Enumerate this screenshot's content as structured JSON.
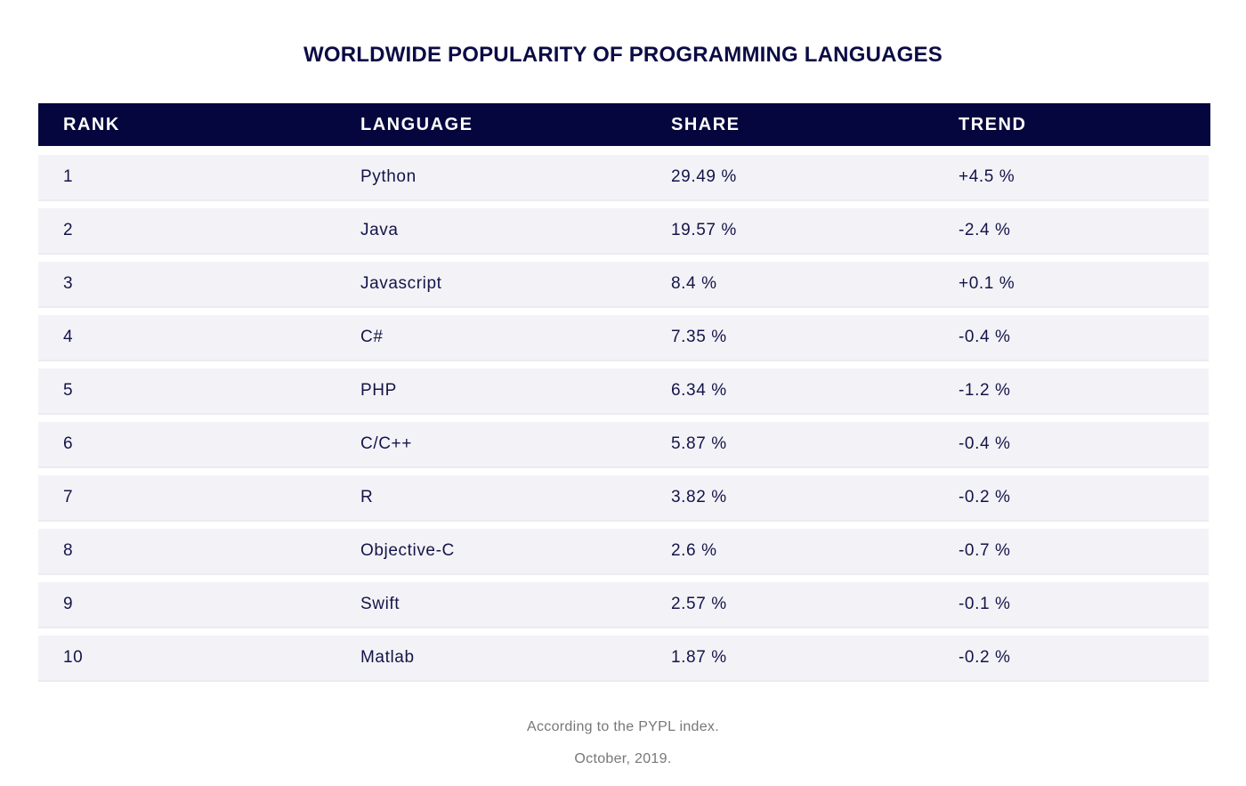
{
  "chart_data": {
    "type": "table",
    "title": "WORLDWIDE POPULARITY OF PROGRAMMING LANGUAGES",
    "columns": [
      "RANK",
      "LANGUAGE",
      "SHARE",
      "TREND"
    ],
    "rows": [
      [
        "1",
        "Python",
        "29.49 %",
        "+4.5 %"
      ],
      [
        "2",
        "Java",
        "19.57 %",
        "-2.4 %"
      ],
      [
        "3",
        "Javascript",
        "8.4 %",
        "+0.1 %"
      ],
      [
        "4",
        "C#",
        "7.35 %",
        "-0.4 %"
      ],
      [
        "5",
        "PHP",
        "6.34 %",
        "-1.2 %"
      ],
      [
        "6",
        "C/C++",
        "5.87 %",
        "-0.4 %"
      ],
      [
        "7",
        "R",
        "3.82 %",
        "-0.2 %"
      ],
      [
        "8",
        "Objective-C",
        "2.6 %",
        "-0.7 %"
      ],
      [
        "9",
        "Swift",
        "2.57 %",
        "-0.1 %"
      ],
      [
        "10",
        "Matlab",
        "1.87 %",
        "-0.2 %"
      ]
    ],
    "footnotes": [
      "According to the PYPL index.",
      "October, 2019."
    ]
  },
  "colors": {
    "header_bg": "#06063f",
    "row_bg": "#f3f3f7",
    "text": "#14144a",
    "footnote": "#777777"
  }
}
